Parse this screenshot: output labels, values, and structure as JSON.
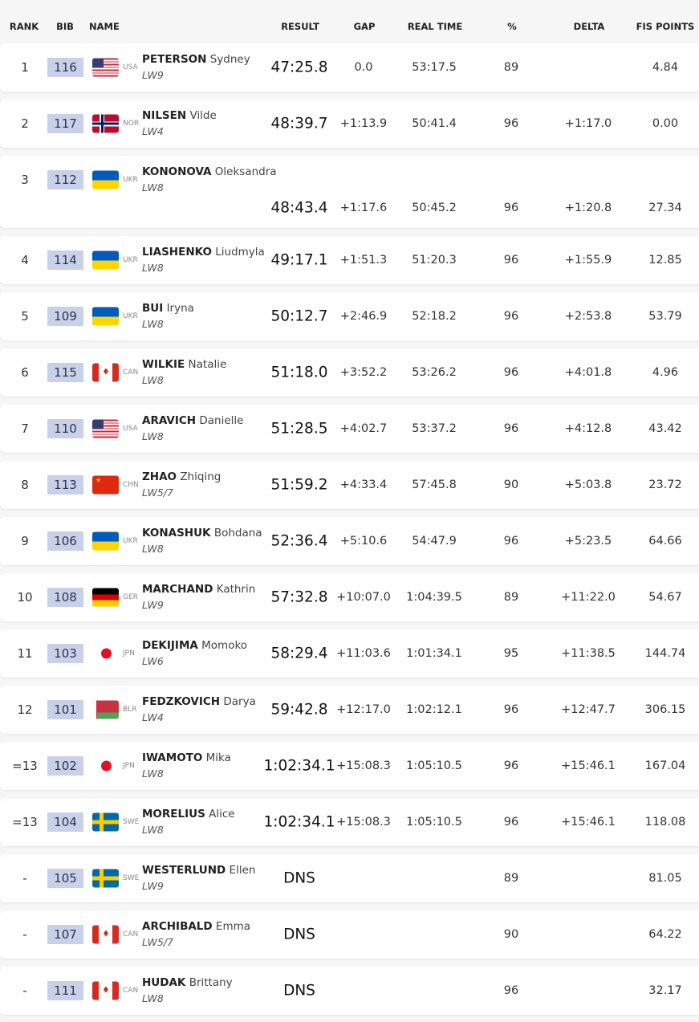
{
  "header": {
    "rank": "RANK",
    "bib": "BIB",
    "name": "NAME",
    "result": "RESULT",
    "gap": "GAP",
    "real_time": "REAL TIME",
    "pct": "%",
    "delta": "DELTA",
    "fis_points": "FIS POINTS"
  },
  "rows": [
    {
      "rank": "1",
      "bib": "116",
      "country": "USA",
      "last": "PETERSON",
      "first": "Sydney",
      "class": "LW9",
      "result": "47:25.8",
      "gap": "0.0",
      "real_time": "53:17.5",
      "pct": "89",
      "delta": "",
      "fis": "4.84"
    },
    {
      "rank": "2",
      "bib": "117",
      "country": "NOR",
      "last": "NILSEN",
      "first": "Vilde",
      "class": "LW4",
      "result": "48:39.7",
      "gap": "+1:13.9",
      "real_time": "50:41.4",
      "pct": "96",
      "delta": "+1:17.0",
      "fis": "0.00"
    },
    {
      "rank": "3",
      "bib": "112",
      "country": "UKR",
      "last": "KONONOVA",
      "first": "Oleksandra",
      "class": "LW8",
      "result": "48:43.4",
      "gap": "+1:17.6",
      "real_time": "50:45.2",
      "pct": "96",
      "delta": "+1:20.8",
      "fis": "27.34",
      "tall": true
    },
    {
      "rank": "4",
      "bib": "114",
      "country": "UKR",
      "last": "LIASHENKO",
      "first": "Liudmyla",
      "class": "LW8",
      "result": "49:17.1",
      "gap": "+1:51.3",
      "real_time": "51:20.3",
      "pct": "96",
      "delta": "+1:55.9",
      "fis": "12.85"
    },
    {
      "rank": "5",
      "bib": "109",
      "country": "UKR",
      "last": "BUI",
      "first": "Iryna",
      "class": "LW8",
      "result": "50:12.7",
      "gap": "+2:46.9",
      "real_time": "52:18.2",
      "pct": "96",
      "delta": "+2:53.8",
      "fis": "53.79"
    },
    {
      "rank": "6",
      "bib": "115",
      "country": "CAN",
      "last": "WILKIE",
      "first": "Natalie",
      "class": "LW8",
      "result": "51:18.0",
      "gap": "+3:52.2",
      "real_time": "53:26.2",
      "pct": "96",
      "delta": "+4:01.8",
      "fis": "4.96"
    },
    {
      "rank": "7",
      "bib": "110",
      "country": "USA",
      "last": "ARAVICH",
      "first": "Danielle",
      "class": "LW8",
      "result": "51:28.5",
      "gap": "+4:02.7",
      "real_time": "53:37.2",
      "pct": "96",
      "delta": "+4:12.8",
      "fis": "43.42"
    },
    {
      "rank": "8",
      "bib": "113",
      "country": "CHN",
      "last": "ZHAO",
      "first": "Zhiqing",
      "class": "LW5/7",
      "result": "51:59.2",
      "gap": "+4:33.4",
      "real_time": "57:45.8",
      "pct": "90",
      "delta": "+5:03.8",
      "fis": "23.72"
    },
    {
      "rank": "9",
      "bib": "106",
      "country": "UKR",
      "last": "KONASHUK",
      "first": "Bohdana",
      "class": "LW8",
      "result": "52:36.4",
      "gap": "+5:10.6",
      "real_time": "54:47.9",
      "pct": "96",
      "delta": "+5:23.5",
      "fis": "64.66"
    },
    {
      "rank": "10",
      "bib": "108",
      "country": "GER",
      "last": "MARCHAND",
      "first": "Kathrin",
      "class": "LW9",
      "result": "57:32.8",
      "gap": "+10:07.0",
      "real_time": "1:04:39.5",
      "pct": "89",
      "delta": "+11:22.0",
      "fis": "54.67"
    },
    {
      "rank": "11",
      "bib": "103",
      "country": "JPN",
      "last": "DEKIJIMA",
      "first": "Momoko",
      "class": "LW6",
      "result": "58:29.4",
      "gap": "+11:03.6",
      "real_time": "1:01:34.1",
      "pct": "95",
      "delta": "+11:38.5",
      "fis": "144.74"
    },
    {
      "rank": "12",
      "bib": "101",
      "country": "BLR",
      "last": "FEDZKOVICH",
      "first": "Darya",
      "class": "LW4",
      "result": "59:42.8",
      "gap": "+12:17.0",
      "real_time": "1:02:12.1",
      "pct": "96",
      "delta": "+12:47.7",
      "fis": "306.15"
    },
    {
      "rank": "=13",
      "bib": "102",
      "country": "JPN",
      "last": "IWAMOTO",
      "first": "Mika",
      "class": "LW8",
      "result": "1:02:34.1",
      "gap": "+15:08.3",
      "real_time": "1:05:10.5",
      "pct": "96",
      "delta": "+15:46.1",
      "fis": "167.04"
    },
    {
      "rank": "=13",
      "bib": "104",
      "country": "SWE",
      "last": "MORELIUS",
      "first": "Alice",
      "class": "LW8",
      "result": "1:02:34.1",
      "gap": "+15:08.3",
      "real_time": "1:05:10.5",
      "pct": "96",
      "delta": "+15:46.1",
      "fis": "118.08"
    },
    {
      "rank": "-",
      "bib": "105",
      "country": "SWE",
      "last": "WESTERLUND",
      "first": "Ellen",
      "class": "LW9",
      "result": "DNS",
      "gap": "",
      "real_time": "",
      "pct": "89",
      "delta": "",
      "fis": "81.05"
    },
    {
      "rank": "-",
      "bib": "107",
      "country": "CAN",
      "last": "ARCHIBALD",
      "first": "Emma",
      "class": "LW5/7",
      "result": "DNS",
      "gap": "",
      "real_time": "",
      "pct": "90",
      "delta": "",
      "fis": "64.22"
    },
    {
      "rank": "-",
      "bib": "111",
      "country": "CAN",
      "last": "HUDAK",
      "first": "Brittany",
      "class": "LW8",
      "result": "DNS",
      "gap": "",
      "real_time": "",
      "pct": "96",
      "delta": "",
      "fis": "32.17"
    }
  ]
}
